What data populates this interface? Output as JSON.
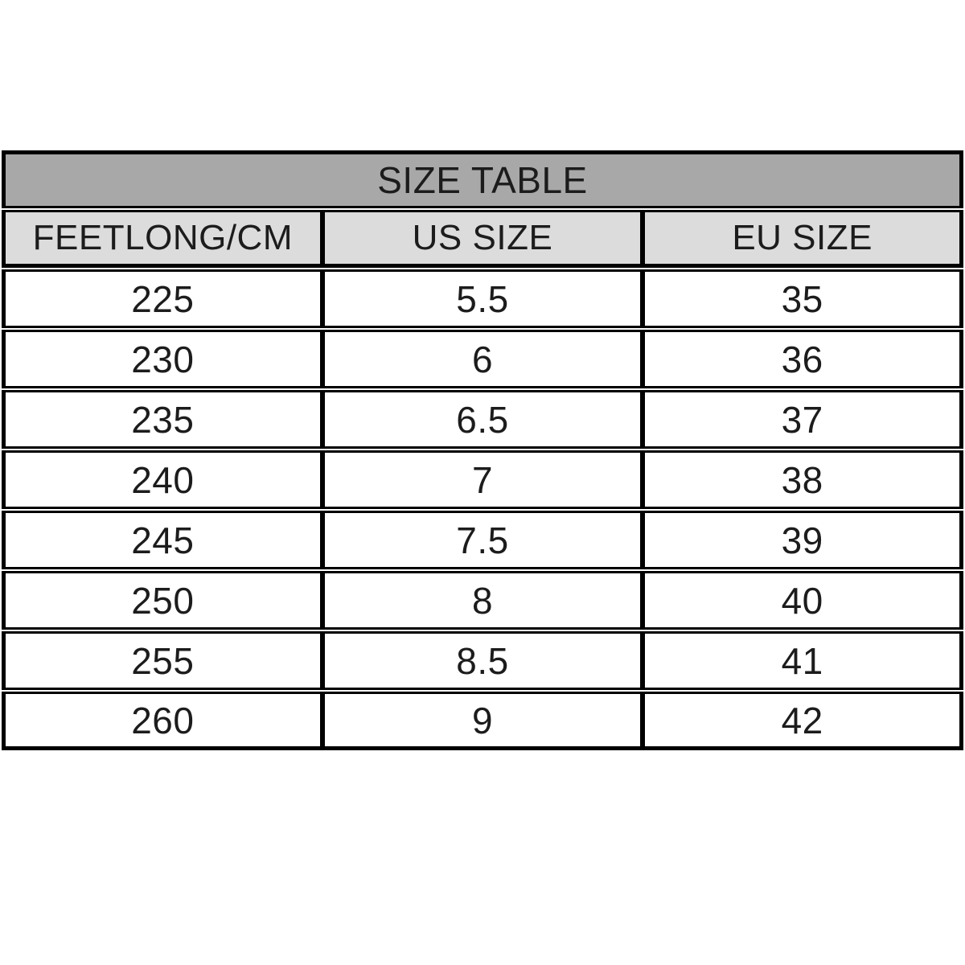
{
  "chart_data": {
    "type": "table",
    "title": "SIZE TABLE",
    "columns": [
      "FEETLONG/CM",
      "US SIZE",
      "EU SIZE"
    ],
    "rows": [
      [
        "225",
        "5.5",
        "35"
      ],
      [
        "230",
        "6",
        "36"
      ],
      [
        "235",
        "6.5",
        "37"
      ],
      [
        "240",
        "7",
        "38"
      ],
      [
        "245",
        "7.5",
        "39"
      ],
      [
        "250",
        "8",
        "40"
      ],
      [
        "255",
        "8.5",
        "41"
      ],
      [
        "260",
        "9",
        "42"
      ]
    ],
    "colors": {
      "title_bg": "#a8a8a8",
      "header_bg": "#dcdcdc",
      "row_bg": "#ffffff",
      "border": "#000000",
      "text": "#1c1c1c"
    },
    "layout": {
      "columns_count": 3,
      "grid": "black cell borders with thin white gaps between rows"
    }
  }
}
